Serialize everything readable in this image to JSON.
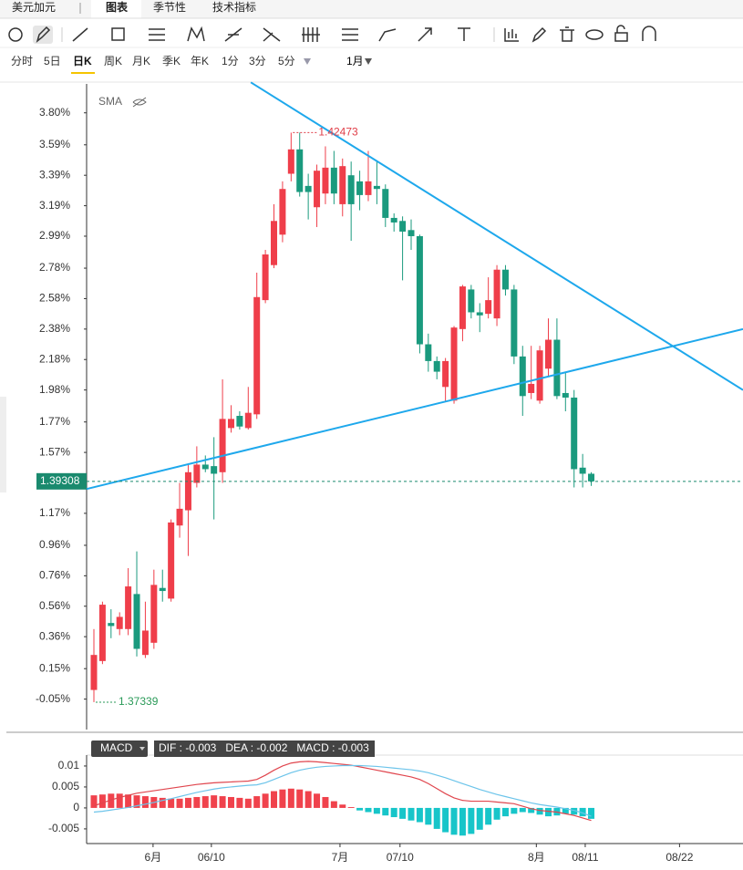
{
  "tabs": [
    "美元加元",
    "图表",
    "季节性",
    "技术指标"
  ],
  "periods": [
    "分时",
    "5日",
    "日K",
    "周K",
    "月K",
    "季K",
    "年K",
    "1分",
    "3分",
    "5分"
  ],
  "range": "1月",
  "chart_data": [
    {
      "type": "candlestick",
      "indicator": "SMA",
      "up_color": "#ef3e4a",
      "down_color": "#1a9a7e",
      "open": [
        0.01,
        0.2,
        0.45,
        0.41,
        0.41,
        0.64,
        0.24,
        0.32,
        0.68,
        0.61,
        1.09,
        1.19,
        1.37,
        1.49,
        1.48,
        1.44,
        1.73,
        1.81,
        1.73,
        1.82,
        2.57,
        2.8,
        3.0,
        3.4,
        3.56,
        3.32,
        3.18,
        3.27,
        3.44,
        3.2,
        3.39,
        3.35,
        3.26,
        3.32,
        3.3,
        3.11,
        3.09,
        3.03,
        2.99,
        2.28,
        2.17,
        2.0,
        1.91,
        2.38,
        2.64,
        2.49,
        2.48,
        2.45,
        2.77,
        2.64,
        2.2,
        1.96,
        1.91,
        2.12,
        2.31,
        1.96,
        1.93,
        1.47,
        1.43
      ],
      "high": [
        0.41,
        0.59,
        0.54,
        0.52,
        0.81,
        0.92,
        0.59,
        0.8,
        0.8,
        1.13,
        1.37,
        1.49,
        1.61,
        1.55,
        1.67,
        2.05,
        1.88,
        1.84,
        2.0,
        2.75,
        2.9,
        3.2,
        3.35,
        3.67,
        3.67,
        3.4,
        3.46,
        3.58,
        3.55,
        3.5,
        3.48,
        3.42,
        3.55,
        3.48,
        3.33,
        3.14,
        3.12,
        3.1,
        3.0,
        2.35,
        2.2,
        2.19,
        2.4,
        2.67,
        2.67,
        2.55,
        2.72,
        2.8,
        2.8,
        2.67,
        2.27,
        2.27,
        2.27,
        2.45,
        2.45,
        2.1,
        1.98,
        1.56,
        1.44
      ],
      "low": [
        -0.07,
        0.18,
        0.35,
        0.37,
        0.37,
        0.23,
        0.22,
        0.28,
        0.59,
        0.59,
        1.01,
        0.89,
        1.34,
        1.44,
        1.13,
        1.37,
        1.7,
        1.72,
        1.72,
        1.79,
        2.55,
        2.78,
        2.95,
        3.35,
        3.25,
        3.1,
        3.05,
        3.2,
        3.2,
        3.12,
        2.96,
        3.16,
        3.22,
        3.2,
        3.05,
        3.02,
        2.7,
        2.9,
        2.22,
        2.1,
        2.05,
        1.9,
        1.89,
        2.3,
        2.45,
        2.36,
        2.45,
        2.4,
        2.6,
        2.15,
        1.81,
        1.92,
        1.89,
        2.07,
        1.92,
        1.84,
        1.34,
        1.34,
        1.35
      ],
      "close": [
        0.24,
        0.57,
        0.43,
        0.49,
        0.69,
        0.28,
        0.4,
        0.7,
        0.66,
        1.11,
        1.2,
        1.44,
        1.49,
        1.46,
        1.43,
        1.79,
        1.79,
        1.74,
        1.83,
        2.59,
        2.87,
        3.09,
        3.3,
        3.56,
        3.28,
        3.28,
        3.42,
        3.44,
        3.27,
        3.45,
        3.2,
        3.26,
        3.35,
        3.3,
        3.11,
        3.08,
        3.02,
        2.99,
        2.28,
        2.17,
        2.1,
        2.17,
        2.39,
        2.66,
        2.49,
        2.47,
        2.57,
        2.77,
        2.64,
        2.2,
        1.94,
        2.02,
        2.24,
        2.31,
        1.94,
        1.93,
        1.46,
        1.43,
        1.38
      ],
      "high_label": "1.42473",
      "low_label": "1.37339",
      "last_label": "1.39308",
      "ylim": [
        -0.25,
        3.99
      ],
      "yticks": [
        {
          "value": 3.8,
          "label": "3.80%"
        },
        {
          "value": 3.59,
          "label": "3.59%"
        },
        {
          "value": 3.39,
          "label": "3.39%"
        },
        {
          "value": 3.19,
          "label": "3.19%"
        },
        {
          "value": 2.99,
          "label": "2.99%"
        },
        {
          "value": 2.78,
          "label": "2.78%"
        },
        {
          "value": 2.58,
          "label": "2.58%"
        },
        {
          "value": 2.38,
          "label": "2.38%"
        },
        {
          "value": 2.18,
          "label": "2.18%"
        },
        {
          "value": 1.98,
          "label": "1.98%"
        },
        {
          "value": 1.77,
          "label": "1.77%"
        },
        {
          "value": 1.57,
          "label": "1.57%"
        },
        {
          "value": 1.17,
          "label": "1.17%"
        },
        {
          "value": 0.96,
          "label": "0.96%"
        },
        {
          "value": 0.76,
          "label": "0.76%"
        },
        {
          "value": 0.56,
          "label": "0.56%"
        },
        {
          "value": 0.36,
          "label": "0.36%"
        },
        {
          "value": 0.15,
          "label": "0.15%"
        },
        {
          "value": -0.05,
          "label": "-0.05%"
        }
      ],
      "xlim": [
        -0.85,
        75.7
      ],
      "trendlines": [
        {
          "color": "#1ea8ec",
          "x": [
            18.3,
            75.7
          ],
          "y": [
            4.0,
            1.98
          ]
        },
        {
          "color": "#1ea8ec",
          "x": [
            -0.85,
            75.7
          ],
          "y": [
            1.33,
            2.38
          ]
        }
      ]
    },
    {
      "type": "macd",
      "name": "MACD",
      "readout": "DIF : -0.003   DEA : -0.002   MACD : -0.003",
      "ylim": [
        -0.0085,
        0.0126
      ],
      "yticks": [
        0.01,
        0.005,
        0,
        -0.005
      ],
      "xlim": [
        -0.85,
        75.7
      ],
      "xticks": [
        {
          "value": 6.9,
          "label": "6月"
        },
        {
          "value": 13.7,
          "label": "06/10"
        },
        {
          "value": 28.7,
          "label": "7月"
        },
        {
          "value": 35.7,
          "label": "07/10"
        },
        {
          "value": 51.6,
          "label": "8月"
        },
        {
          "value": 57.3,
          "label": "08/11"
        },
        {
          "value": 68.3,
          "label": "08/22"
        }
      ],
      "up_color": "#f0424c",
      "down_color": "#17c5c9",
      "histogram": [
        0.003,
        0.0032,
        0.0034,
        0.0034,
        0.0032,
        0.003,
        0.0028,
        0.0026,
        0.0024,
        0.0022,
        0.0022,
        0.0024,
        0.0026,
        0.0028,
        0.003,
        0.0028,
        0.0026,
        0.0024,
        0.0022,
        0.0028,
        0.0034,
        0.004,
        0.0044,
        0.0046,
        0.0044,
        0.004,
        0.0034,
        0.0026,
        0.0016,
        0.0008,
        0.0002,
        -0.0006,
        -0.001,
        -0.0014,
        -0.0018,
        -0.0022,
        -0.0026,
        -0.003,
        -0.0034,
        -0.004,
        -0.005,
        -0.0058,
        -0.0064,
        -0.0066,
        -0.0062,
        -0.0052,
        -0.004,
        -0.0028,
        -0.002,
        -0.0014,
        -0.001,
        -0.0012,
        -0.0016,
        -0.002,
        -0.0018,
        -0.0014,
        -0.0016,
        -0.002,
        -0.0026
      ],
      "series": [
        {
          "name": "DIF",
          "color": "#e0464e",
          "values": [
            0.0005,
            0.0012,
            0.0019,
            0.0025,
            0.003,
            0.0035,
            0.0038,
            0.0041,
            0.0044,
            0.0047,
            0.005,
            0.0053,
            0.0056,
            0.0058,
            0.006,
            0.0061,
            0.0062,
            0.0063,
            0.0064,
            0.0068,
            0.0078,
            0.009,
            0.01,
            0.0107,
            0.011,
            0.0111,
            0.011,
            0.0108,
            0.0106,
            0.0104,
            0.0102,
            0.0098,
            0.0094,
            0.009,
            0.0086,
            0.0082,
            0.0078,
            0.0074,
            0.0068,
            0.0058,
            0.0046,
            0.0034,
            0.0024,
            0.0018,
            0.0016,
            0.0016,
            0.0016,
            0.0014,
            0.0012,
            0.001,
            0.0004,
            -0.0002,
            -0.0006,
            -0.0008,
            -0.001,
            -0.0014,
            -0.0018,
            -0.0024,
            -0.003
          ]
        },
        {
          "name": "DEA",
          "color": "#6cc4ea",
          "values": [
            -0.001,
            -0.0008,
            -0.0005,
            -0.0002,
            0.0001,
            0.0005,
            0.0009,
            0.0013,
            0.0018,
            0.0022,
            0.0027,
            0.0032,
            0.0037,
            0.0041,
            0.0045,
            0.0048,
            0.005,
            0.0052,
            0.0054,
            0.0055,
            0.006,
            0.0068,
            0.0076,
            0.0084,
            0.009,
            0.0094,
            0.0097,
            0.0099,
            0.01,
            0.0101,
            0.0101,
            0.0101,
            0.01,
            0.0099,
            0.0097,
            0.0095,
            0.0093,
            0.0091,
            0.0088,
            0.0084,
            0.0078,
            0.0072,
            0.0065,
            0.0058,
            0.0051,
            0.0044,
            0.0038,
            0.0032,
            0.0027,
            0.0022,
            0.0017,
            0.0012,
            0.0008,
            0.0005,
            0.0002,
            -0.0002,
            -0.0006,
            -0.0012,
            -0.002
          ]
        }
      ]
    }
  ]
}
